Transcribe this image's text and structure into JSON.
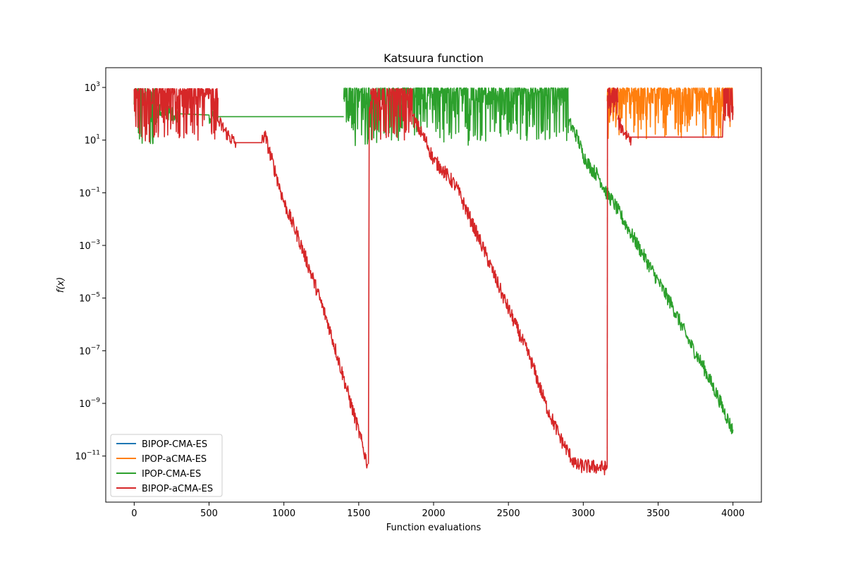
{
  "chart_data": {
    "type": "line",
    "title": "Katsuura function",
    "xlabel": "Function evaluations",
    "ylabel": "f(x)",
    "yscale": "log",
    "xlim": [
      -190,
      4190
    ],
    "ylim_exp": [
      -12.75,
      3.75
    ],
    "x_ticks": [
      0,
      500,
      1000,
      1500,
      2000,
      2500,
      3000,
      3500,
      4000
    ],
    "x_tick_labels": [
      "0",
      "500",
      "1000",
      "1500",
      "2000",
      "2500",
      "3000",
      "3500",
      "4000"
    ],
    "y_tick_exponents": [
      3,
      1,
      -1,
      -3,
      -5,
      -7,
      -9,
      -11
    ],
    "y_tick_labels": [
      "10",
      "10",
      "10",
      "10",
      "10",
      "10",
      "10",
      "10"
    ],
    "y_tick_superscripts": [
      "3",
      "1",
      "−1",
      "−3",
      "−5",
      "−7",
      "−9",
      "−11"
    ],
    "legend_position": "lower-left",
    "series": [
      {
        "name": "BIPOP-CMA-ES",
        "color": "#1f77b4",
        "segments": []
      },
      {
        "name": "IPOP-aCMA-ES",
        "color": "#ff7f0e",
        "segments": [
          {
            "type": "noise",
            "x_start": 3160,
            "x_end": 4000,
            "lo": 11,
            "hi": 950
          }
        ]
      },
      {
        "name": "IPOP-CMA-ES",
        "color": "#2ca02c",
        "segments": [
          {
            "type": "noise",
            "x_start": 0,
            "x_end": 150,
            "lo": 4,
            "hi": 900
          },
          {
            "type": "path",
            "points": [
              [
                150,
                150
              ],
              [
                300,
                100
              ],
              [
                500,
                90
              ],
              [
                560,
                78
              ],
              [
                1400,
                78
              ]
            ]
          },
          {
            "type": "noise",
            "x_start": 1400,
            "x_end": 2900,
            "lo": 6,
            "hi": 950
          },
          {
            "type": "path",
            "points": [
              [
                2900,
                60
              ],
              [
                2960,
                15
              ],
              [
                3000,
                3
              ],
              [
                3050,
                1
              ],
              [
                3100,
                0.5
              ],
              [
                3160,
                0.1
              ],
              [
                3200,
                0.05
              ],
              [
                3300,
                0.005
              ],
              [
                3400,
                0.0005
              ],
              [
                3500,
                5e-05
              ],
              [
                3600,
                5e-06
              ],
              [
                3700,
                3e-07
              ],
              [
                3800,
                3e-08
              ],
              [
                3900,
                2e-09
              ],
              [
                4000,
                1e-10
              ]
            ]
          }
        ]
      },
      {
        "name": "BIPOP-aCMA-ES",
        "color": "#d62728",
        "segments": [
          {
            "type": "noise",
            "x_start": 0,
            "x_end": 560,
            "lo": 8,
            "hi": 900
          },
          {
            "type": "path",
            "points": [
              [
                560,
                60
              ],
              [
                620,
                20
              ],
              [
                680,
                8
              ],
              [
                850,
                8
              ],
              [
                870,
                20
              ],
              [
                900,
                5
              ],
              [
                950,
                0.5
              ],
              [
                1000,
                0.05
              ],
              [
                1100,
                0.002
              ],
              [
                1200,
                5e-05
              ],
              [
                1300,
                1e-06
              ],
              [
                1400,
                1e-08
              ],
              [
                1500,
                1e-10
              ],
              [
                1560,
                5e-12
              ]
            ]
          },
          {
            "type": "path",
            "points": [
              [
                1565,
                5e-12
              ],
              [
                1570,
                100
              ],
              [
                1580,
                300
              ]
            ]
          },
          {
            "type": "noise",
            "x_start": 1580,
            "x_end": 1860,
            "lo": 10,
            "hi": 900
          },
          {
            "type": "path",
            "points": [
              [
                1860,
                80
              ],
              [
                1950,
                10
              ],
              [
                2000,
                2
              ],
              [
                2050,
                1
              ],
              [
                2150,
                0.2
              ],
              [
                2250,
                0.01
              ],
              [
                2350,
                0.0005
              ],
              [
                2450,
                2e-05
              ],
              [
                2550,
                1e-06
              ],
              [
                2650,
                5e-08
              ],
              [
                2750,
                1e-09
              ],
              [
                2850,
                5e-11
              ],
              [
                2950,
                5e-12
              ],
              [
                3160,
                4e-12
              ]
            ]
          },
          {
            "type": "path",
            "points": [
              [
                3160,
                4e-12
              ],
              [
                3162,
                500
              ]
            ]
          },
          {
            "type": "noise",
            "x_start": 3162,
            "x_end": 3230,
            "lo": 60,
            "hi": 950
          },
          {
            "type": "path",
            "points": [
              [
                3230,
                60
              ],
              [
                3280,
                20
              ],
              [
                3320,
                13
              ],
              [
                3930,
                13
              ],
              [
                3935,
                100
              ]
            ]
          },
          {
            "type": "noise",
            "x_start": 3935,
            "x_end": 4000,
            "lo": 40,
            "hi": 900
          }
        ]
      }
    ]
  }
}
